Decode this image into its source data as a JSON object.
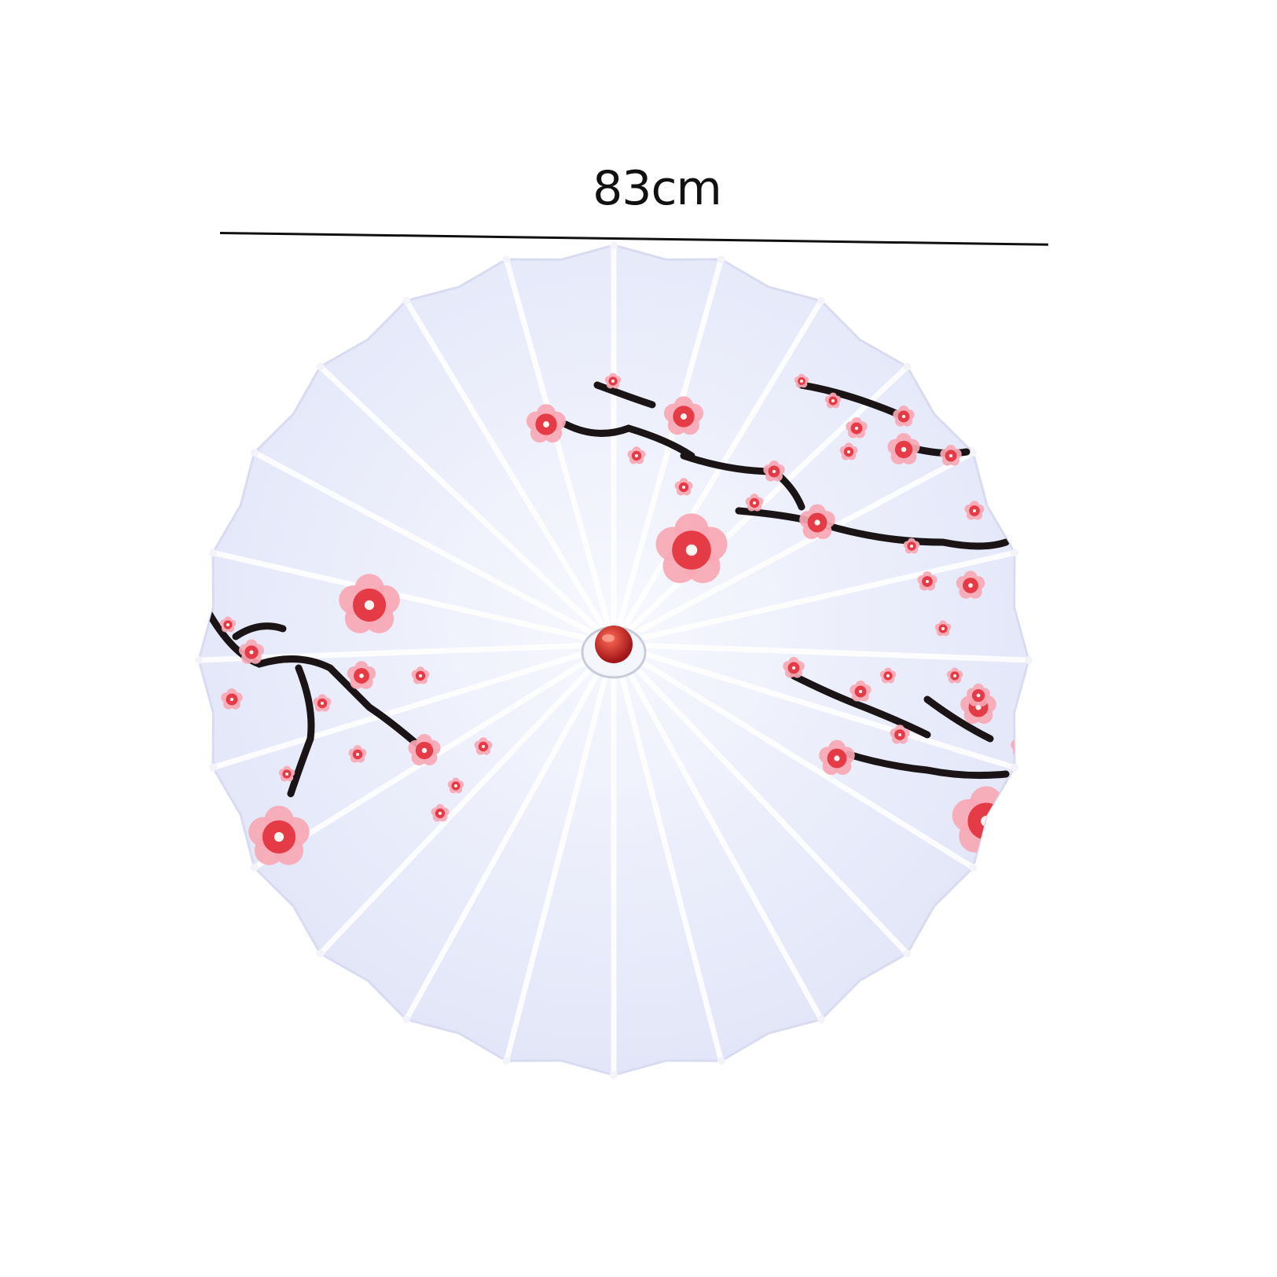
{
  "measurement": {
    "label": "83cm"
  },
  "colors": {
    "canopy": "#e7eaf9",
    "rib": "#ffffff",
    "branch": "#1a1416",
    "blossom_dark": "#e53b47",
    "blossom_light": "#f7a8b4",
    "knob": "#c42a25"
  },
  "icons": {
    "canopy": "umbrella-icon",
    "knob": "red-knob-icon",
    "blossom": "plum-blossom-icon"
  }
}
